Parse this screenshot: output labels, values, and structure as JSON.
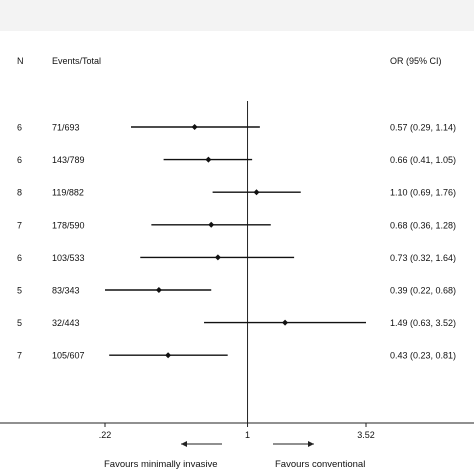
{
  "chart_data": {
    "type": "forest",
    "columns": {
      "n": "N",
      "events": "Events/Total",
      "or": "OR (95% CI)"
    },
    "scale": "log",
    "reference_line": 1,
    "x_ticks": [
      {
        "value": 0.22,
        "label": ".22"
      },
      {
        "value": 1,
        "label": "1"
      },
      {
        "value": 3.52,
        "label": "3.52"
      }
    ],
    "direction_labels": {
      "left": "Favours minimally invasive",
      "right": "Favours conventional"
    },
    "rows": [
      {
        "n": "6",
        "events": "71/693",
        "or": 0.57,
        "lo": 0.29,
        "hi": 1.14,
        "label": "0.57 (0.29, 1.14)"
      },
      {
        "n": "6",
        "events": "143/789",
        "or": 0.66,
        "lo": 0.41,
        "hi": 1.05,
        "label": "0.66 (0.41, 1.05)"
      },
      {
        "n": "8",
        "events": "119/882",
        "or": 1.1,
        "lo": 0.69,
        "hi": 1.76,
        "label": "1.10 (0.69, 1.76)"
      },
      {
        "n": "7",
        "events": "178/590",
        "or": 0.68,
        "lo": 0.36,
        "hi": 1.28,
        "label": "0.68 (0.36, 1.28)"
      },
      {
        "n": "6",
        "events": "103/533",
        "or": 0.73,
        "lo": 0.32,
        "hi": 1.64,
        "label": "0.73 (0.32, 1.64)"
      },
      {
        "n": "5",
        "events": "83/343",
        "or": 0.39,
        "lo": 0.22,
        "hi": 0.68,
        "label": "0.39 (0.22, 0.68)"
      },
      {
        "n": "5",
        "events": "32/443",
        "or": 1.49,
        "lo": 0.63,
        "hi": 3.52,
        "label": "1.49 (0.63, 3.52)"
      },
      {
        "n": "7",
        "events": "105/607",
        "or": 0.43,
        "lo": 0.23,
        "hi": 0.81,
        "label": "0.43 (0.23, 0.81)"
      }
    ]
  }
}
